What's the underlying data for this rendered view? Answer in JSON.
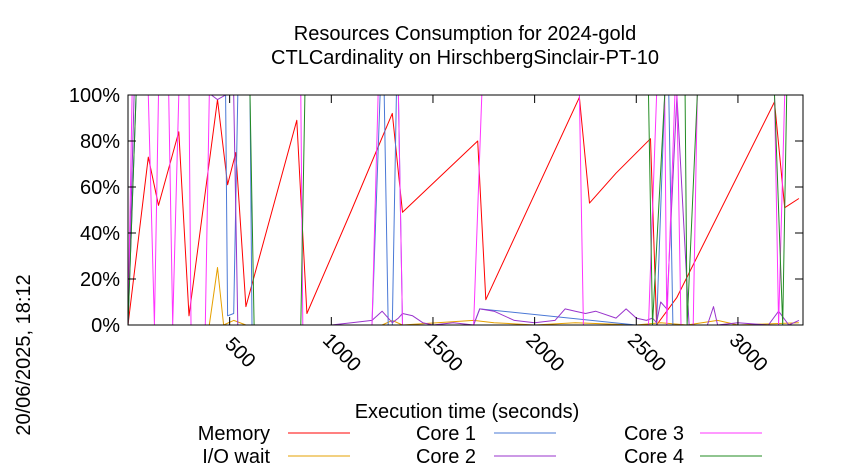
{
  "side_label": "20/06/2025, 18:12",
  "chart_data": {
    "type": "line",
    "title": [
      "Resources Consumption for 2024-gold",
      "CTLCardinality on HirschbergSinclair-PT-10"
    ],
    "xlabel": "Execution time (seconds)",
    "ylabel": "",
    "xlim": [
      0,
      3320
    ],
    "ylim": [
      0,
      100
    ],
    "x_ticks": [
      500,
      1000,
      1500,
      2000,
      2500,
      3000
    ],
    "y_ticks": [
      0,
      20,
      40,
      60,
      80,
      100
    ],
    "y_tick_labels": [
      "0%",
      "20%",
      "40%",
      "60%",
      "80%",
      "100%"
    ],
    "legend_position": "bottom",
    "series": [
      {
        "name": "Memory",
        "color": "#ff0000",
        "points": [
          [
            0,
            0
          ],
          [
            100,
            73
          ],
          [
            150,
            52
          ],
          [
            250,
            84
          ],
          [
            300,
            4
          ],
          [
            440,
            98
          ],
          [
            490,
            61
          ],
          [
            530,
            75
          ],
          [
            580,
            8
          ],
          [
            830,
            89
          ],
          [
            880,
            5
          ],
          [
            1100,
            50
          ],
          [
            1300,
            92
          ],
          [
            1350,
            49
          ],
          [
            1720,
            80
          ],
          [
            1760,
            11
          ],
          [
            2220,
            99
          ],
          [
            2270,
            53
          ],
          [
            2400,
            66
          ],
          [
            2570,
            81
          ],
          [
            2600,
            0
          ],
          [
            2700,
            12
          ],
          [
            3180,
            97
          ],
          [
            3230,
            51
          ],
          [
            3300,
            55
          ]
        ]
      },
      {
        "name": "I/O wait",
        "color": "#e6a000",
        "points": [
          [
            0,
            0
          ],
          [
            400,
            0
          ],
          [
            440,
            25
          ],
          [
            470,
            0
          ],
          [
            520,
            2
          ],
          [
            580,
            0
          ],
          [
            1000,
            0
          ],
          [
            1250,
            0
          ],
          [
            1300,
            2
          ],
          [
            1350,
            0
          ],
          [
            1700,
            2
          ],
          [
            1800,
            1
          ],
          [
            2000,
            0
          ],
          [
            2200,
            1
          ],
          [
            2500,
            0
          ],
          [
            2620,
            1
          ],
          [
            2750,
            0
          ],
          [
            2900,
            2
          ],
          [
            3000,
            0
          ],
          [
            3300,
            1
          ]
        ]
      },
      {
        "name": "Core 1",
        "color": "#4a78d6",
        "points": [
          [
            0,
            0
          ],
          [
            40,
            100
          ],
          [
            400,
            100
          ],
          [
            480,
            100
          ],
          [
            490,
            4
          ],
          [
            520,
            5
          ],
          [
            540,
            100
          ],
          [
            600,
            100
          ],
          [
            610,
            0
          ],
          [
            1050,
            0
          ],
          [
            1200,
            0
          ],
          [
            1240,
            100
          ],
          [
            1260,
            100
          ],
          [
            1280,
            0
          ],
          [
            1300,
            0
          ],
          [
            1320,
            100
          ],
          [
            1330,
            100
          ],
          [
            1350,
            0
          ],
          [
            1700,
            0
          ],
          [
            1730,
            7
          ],
          [
            2500,
            0
          ],
          [
            2600,
            0
          ],
          [
            2640,
            100
          ],
          [
            2660,
            100
          ],
          [
            2680,
            0
          ],
          [
            3300,
            0
          ]
        ]
      },
      {
        "name": "Core 2",
        "color": "#9933cc",
        "points": [
          [
            0,
            0
          ],
          [
            30,
            100
          ],
          [
            410,
            100
          ],
          [
            440,
            98
          ],
          [
            480,
            100
          ],
          [
            500,
            100
          ],
          [
            520,
            100
          ],
          [
            540,
            0
          ],
          [
            850,
            0
          ],
          [
            900,
            0
          ],
          [
            1000,
            0
          ],
          [
            1100,
            1
          ],
          [
            1200,
            2
          ],
          [
            1250,
            6
          ],
          [
            1300,
            1
          ],
          [
            1330,
            3
          ],
          [
            1350,
            5
          ],
          [
            1400,
            4
          ],
          [
            1450,
            1
          ],
          [
            1500,
            0
          ],
          [
            1600,
            1
          ],
          [
            1700,
            0
          ],
          [
            1730,
            7
          ],
          [
            1800,
            6
          ],
          [
            1900,
            2
          ],
          [
            2000,
            1
          ],
          [
            2100,
            2
          ],
          [
            2150,
            7
          ],
          [
            2200,
            6
          ],
          [
            2250,
            5
          ],
          [
            2300,
            6
          ],
          [
            2400,
            3
          ],
          [
            2450,
            7
          ],
          [
            2500,
            3
          ],
          [
            2550,
            2
          ],
          [
            2580,
            3
          ],
          [
            2600,
            1
          ],
          [
            2620,
            10
          ],
          [
            2650,
            7
          ],
          [
            2700,
            100
          ],
          [
            2760,
            0
          ],
          [
            2850,
            0
          ],
          [
            2880,
            8
          ],
          [
            2900,
            0
          ],
          [
            3000,
            1
          ],
          [
            3150,
            0
          ],
          [
            3200,
            6
          ],
          [
            3250,
            0
          ],
          [
            3300,
            2
          ]
        ]
      },
      {
        "name": "Core 3",
        "color": "#ff33ff",
        "points": [
          [
            0,
            0
          ],
          [
            20,
            100
          ],
          [
            100,
            100
          ],
          [
            130,
            0
          ],
          [
            150,
            100
          ],
          [
            200,
            100
          ],
          [
            220,
            0
          ],
          [
            250,
            100
          ],
          [
            300,
            100
          ],
          [
            310,
            0
          ],
          [
            380,
            0
          ],
          [
            400,
            100
          ],
          [
            850,
            100
          ],
          [
            860,
            0
          ],
          [
            1200,
            0
          ],
          [
            1230,
            100
          ],
          [
            1330,
            100
          ],
          [
            1350,
            0
          ],
          [
            1700,
            0
          ],
          [
            1740,
            100
          ],
          [
            2220,
            100
          ],
          [
            2240,
            0
          ],
          [
            2560,
            0
          ],
          [
            2600,
            100
          ],
          [
            2640,
            100
          ],
          [
            2650,
            0
          ],
          [
            2690,
            100
          ],
          [
            2700,
            100
          ],
          [
            2720,
            0
          ],
          [
            2780,
            0
          ],
          [
            2800,
            100
          ],
          [
            3180,
            100
          ],
          [
            3200,
            0
          ],
          [
            3230,
            100
          ],
          [
            3320,
            100
          ]
        ]
      },
      {
        "name": "Core 4",
        "color": "#228b22",
        "points": [
          [
            0,
            0
          ],
          [
            40,
            100
          ],
          [
            600,
            100
          ],
          [
            620,
            0
          ],
          [
            850,
            0
          ],
          [
            870,
            100
          ],
          [
            2560,
            100
          ],
          [
            2580,
            0
          ],
          [
            2640,
            100
          ],
          [
            2740,
            100
          ],
          [
            2750,
            0
          ],
          [
            2800,
            100
          ],
          [
            3180,
            100
          ],
          [
            3220,
            0
          ],
          [
            3240,
            100
          ],
          [
            3320,
            100
          ]
        ]
      }
    ]
  }
}
